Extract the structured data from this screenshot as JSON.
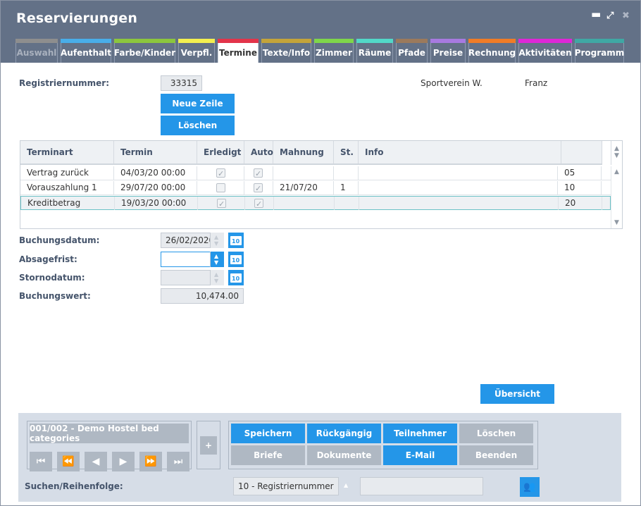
{
  "window": {
    "title": "Reservierungen"
  },
  "tabs": [
    {
      "label": "Auswahl",
      "color": "#8e8e8e",
      "width": 60,
      "state": "disabled"
    },
    {
      "label": "Aufenthalt",
      "color": "#49aee9",
      "width": 72,
      "state": "normal"
    },
    {
      "label": "Farbe/Kinder",
      "color": "#8cc63e",
      "width": 87,
      "state": "normal"
    },
    {
      "label": "Verpfl.",
      "color": "#f3ef4f",
      "width": 52,
      "state": "normal"
    },
    {
      "label": "Termine",
      "color": "#e3344a",
      "width": 58,
      "state": "active"
    },
    {
      "label": "Texte/Info",
      "color": "#c4a43a",
      "width": 71,
      "state": "normal"
    },
    {
      "label": "Zimmer",
      "color": "#7fd64a",
      "width": 56,
      "state": "normal"
    },
    {
      "label": "Räume",
      "color": "#52d8c8",
      "width": 52,
      "state": "normal"
    },
    {
      "label": "Pfade",
      "color": "#9c7a5c",
      "width": 45,
      "state": "normal"
    },
    {
      "label": "Preise",
      "color": "#a77ae0",
      "width": 50,
      "state": "normal"
    },
    {
      "label": "Rechnung",
      "color": "#f07c27",
      "width": 67,
      "state": "normal"
    },
    {
      "label": "Aktivitäten",
      "color": "#de27d7",
      "width": 76,
      "state": "normal"
    },
    {
      "label": "Programm",
      "color": "#3fa8a4",
      "width": 70,
      "state": "normal"
    }
  ],
  "form": {
    "registriernummer_label": "Registriernummer:",
    "registriernummer_value": "33315",
    "client_name": "Sportverein W.",
    "client_first": "Franz",
    "new_row_label": "Neue Zeile",
    "delete_label": "Löschen",
    "buchungsdatum_label": "Buchungsdatum:",
    "buchungsdatum_value": "26/02/2020",
    "absagefrist_label": "Absagefrist:",
    "absagefrist_value": "",
    "stornodatum_label": "Stornodatum:",
    "stornodatum_value": "",
    "buchungswert_label": "Buchungswert:",
    "buchungswert_value": "10,474.00",
    "overview_label": "Übersicht"
  },
  "table": {
    "headers": [
      "Terminart",
      "Termin",
      "Erledigt",
      "Auto",
      "Mahnung",
      "St.",
      "Info",
      ""
    ],
    "rows": [
      {
        "terminart": "Vertrag zurück",
        "termin": "04/03/20 00:00",
        "erledigt": true,
        "auto": true,
        "mahnung": "",
        "st": "",
        "info": "",
        "code": "05",
        "selected": false
      },
      {
        "terminart": "Vorauszahlung 1",
        "termin": "29/07/20 00:00",
        "erledigt": false,
        "auto": true,
        "mahnung": "21/07/20",
        "st": "1",
        "info": "",
        "code": "10",
        "selected": false
      },
      {
        "terminart": "Kreditbetrag",
        "termin": "19/03/20 00:00",
        "erledigt": true,
        "auto": true,
        "mahnung": "",
        "st": "",
        "info": "",
        "code": "20",
        "selected": true
      }
    ]
  },
  "footer": {
    "record_label": "001/002 - Demo Hostel bed categories",
    "plus_label": "+",
    "actions": [
      {
        "label": "Speichern",
        "style": "blue"
      },
      {
        "label": "Rückgängig",
        "style": "blue"
      },
      {
        "label": "Teilnehmer",
        "style": "blue"
      },
      {
        "label": "Löschen",
        "style": "grey"
      },
      {
        "label": "Briefe",
        "style": "grey"
      },
      {
        "label": "Dokumente",
        "style": "grey"
      },
      {
        "label": "E-Mail",
        "style": "blue"
      },
      {
        "label": "Beenden",
        "style": "grey"
      }
    ],
    "search_label": "Suchen/Reihenfolge:",
    "search_order_value": "10 - Registriernummer",
    "search_value": ""
  }
}
